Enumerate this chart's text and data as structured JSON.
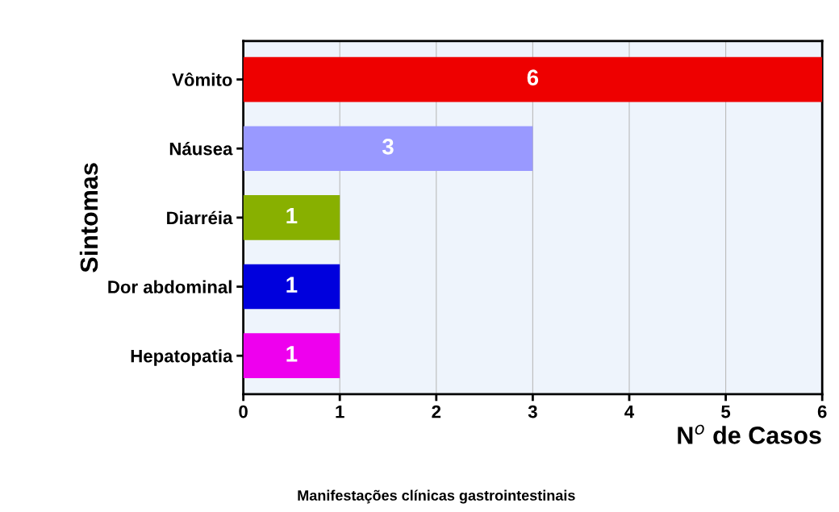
{
  "chart_data": {
    "type": "bar",
    "orientation": "horizontal",
    "categories": [
      "Vômito",
      "Náusea",
      "Diarréia",
      "Dor abdominal",
      "Hepatopatia"
    ],
    "values": [
      6,
      3,
      1,
      1,
      1
    ],
    "colors": [
      "#ee0000",
      "#9999ff",
      "#88b000",
      "#0000dd",
      "#ee00ee"
    ],
    "xlim": [
      0,
      6
    ],
    "xticks": [
      0,
      1,
      2,
      3,
      4,
      5,
      6
    ],
    "xlabel": "N$^{o}$ de Casos",
    "ylabel": "Sintomas",
    "annotations": [
      "Manifestações clínicas gastrointestinais"
    ],
    "data_labels": true,
    "grid": "x"
  }
}
